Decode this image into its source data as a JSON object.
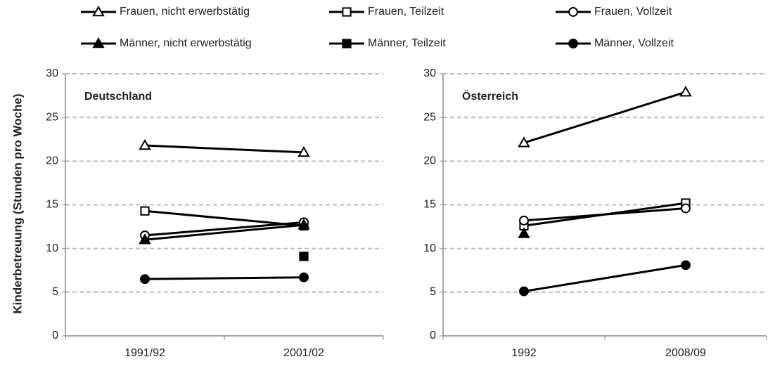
{
  "chart_data": [
    {
      "type": "line",
      "title": "Deutschland",
      "ylabel": "Kinderbetreuung (Stunden pro Woche)",
      "categories": [
        "1991/92",
        "2001/02"
      ],
      "ylim": [
        0,
        30
      ],
      "yticks": [
        0,
        5,
        10,
        15,
        20,
        25,
        30
      ],
      "grid": true,
      "series": [
        {
          "name": "Frauen, nicht erwerbstätig",
          "color": "#000000",
          "marker": "triangle",
          "filled": false,
          "values": [
            21.8,
            21.0
          ]
        },
        {
          "name": "Frauen, Teilzeit",
          "color": "#000000",
          "marker": "square",
          "filled": false,
          "values": [
            14.3,
            12.6
          ]
        },
        {
          "name": "Frauen, Vollzeit",
          "color": "#000000",
          "marker": "circle",
          "filled": false,
          "values": [
            11.5,
            13.0
          ]
        },
        {
          "name": "Männer, nicht erwerbstätig",
          "color": "#000000",
          "marker": "triangle",
          "filled": true,
          "values": [
            11.0,
            12.7
          ]
        },
        {
          "name": "Männer, Teilzeit",
          "color": "#000000",
          "marker": "square",
          "filled": true,
          "values": [
            null,
            9.1
          ]
        },
        {
          "name": "Männer, Vollzeit",
          "color": "#000000",
          "marker": "circle",
          "filled": true,
          "values": [
            6.5,
            6.7
          ]
        }
      ]
    },
    {
      "type": "line",
      "title": "Österreich",
      "categories": [
        "1992",
        "2008/09"
      ],
      "ylim": [
        0,
        30
      ],
      "yticks": [
        0,
        5,
        10,
        15,
        20,
        25,
        30
      ],
      "grid": true,
      "series": [
        {
          "name": "Frauen, nicht erwerbstätig",
          "color": "#000000",
          "marker": "triangle",
          "filled": false,
          "values": [
            22.1,
            27.9
          ]
        },
        {
          "name": "Frauen, Teilzeit",
          "color": "#000000",
          "marker": "square",
          "filled": false,
          "values": [
            12.6,
            15.2
          ]
        },
        {
          "name": "Frauen, Vollzeit",
          "color": "#000000",
          "marker": "circle",
          "filled": false,
          "values": [
            13.2,
            14.6
          ]
        },
        {
          "name": "Männer, nicht erwerbstätig",
          "color": "#000000",
          "marker": "triangle",
          "filled": true,
          "values": [
            11.7,
            null
          ]
        },
        {
          "name": "Männer, Teilzeit",
          "color": "#000000",
          "marker": "square",
          "filled": true,
          "values": [
            null,
            null
          ]
        },
        {
          "name": "Männer, Vollzeit",
          "color": "#000000",
          "marker": "circle",
          "filled": true,
          "values": [
            5.1,
            8.1
          ]
        }
      ]
    }
  ]
}
